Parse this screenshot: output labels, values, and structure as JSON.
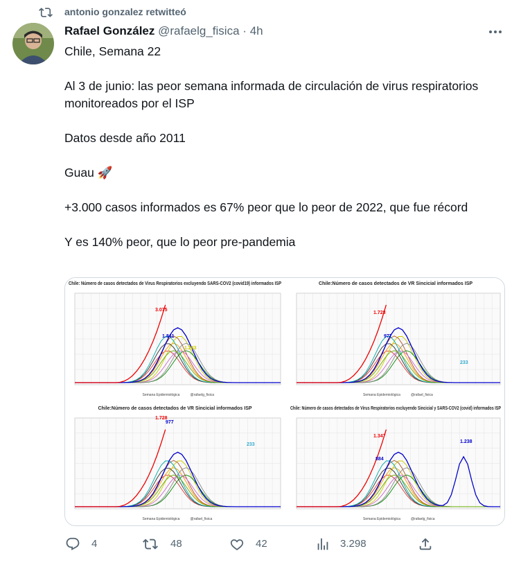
{
  "retweet_label": "antonio gonzalez retwitteó",
  "author": {
    "name": "Rafael González",
    "handle": "@rafaelg_fisica",
    "time": "4h"
  },
  "paragraphs": [
    "Chile,   Semana 22",
    "Al 3 de junio: las peor semana informada de circulación de virus respiratorios monitoreados por el ISP",
    "Datos desde año 2011",
    "Guau 🚀",
    "+3.000 casos informados es 67% peor que lo peor de 2022, que fue récord",
    "Y es 140% peor, que lo peor pre-pandemia"
  ],
  "images": [
    {
      "title": "Chile: Número de casos detectados de Virus Respiratorios excluyendo SARS-COV2 (covid19) informados ISP",
      "annotations": [
        "3.075",
        "1.841",
        "1.283"
      ],
      "x_label": "Semana Epidemiológica",
      "credit": "@rafaelg_fisica"
    },
    {
      "title": "Chile:Número de casos detectados de VR Sincicial informados ISP",
      "annotations": [
        "1.728",
        "977",
        "233"
      ],
      "x_label": "Semana Epidemiológica",
      "credit": "@rafael_fisica"
    },
    {
      "title": "Chile:Número de casos detectados de VR Sincicial informados ISP",
      "annotations": [
        "1.728",
        "977",
        "233"
      ],
      "x_label": "Semana Epidemiológica",
      "credit": "@rafael_fisica"
    },
    {
      "title": "Chile: Número de casos detectados de Virus Respiratorios excluyendo Sincicial y SARS-COV2 (covid) informados ISP",
      "annotations": [
        "1.347",
        "884",
        "1.238"
      ],
      "x_label": "Semana Epidemiológica",
      "credit": "@rafaelg_fisica"
    }
  ],
  "actions": {
    "replies": "4",
    "retweets": "48",
    "likes": "42",
    "views": "3.298"
  }
}
